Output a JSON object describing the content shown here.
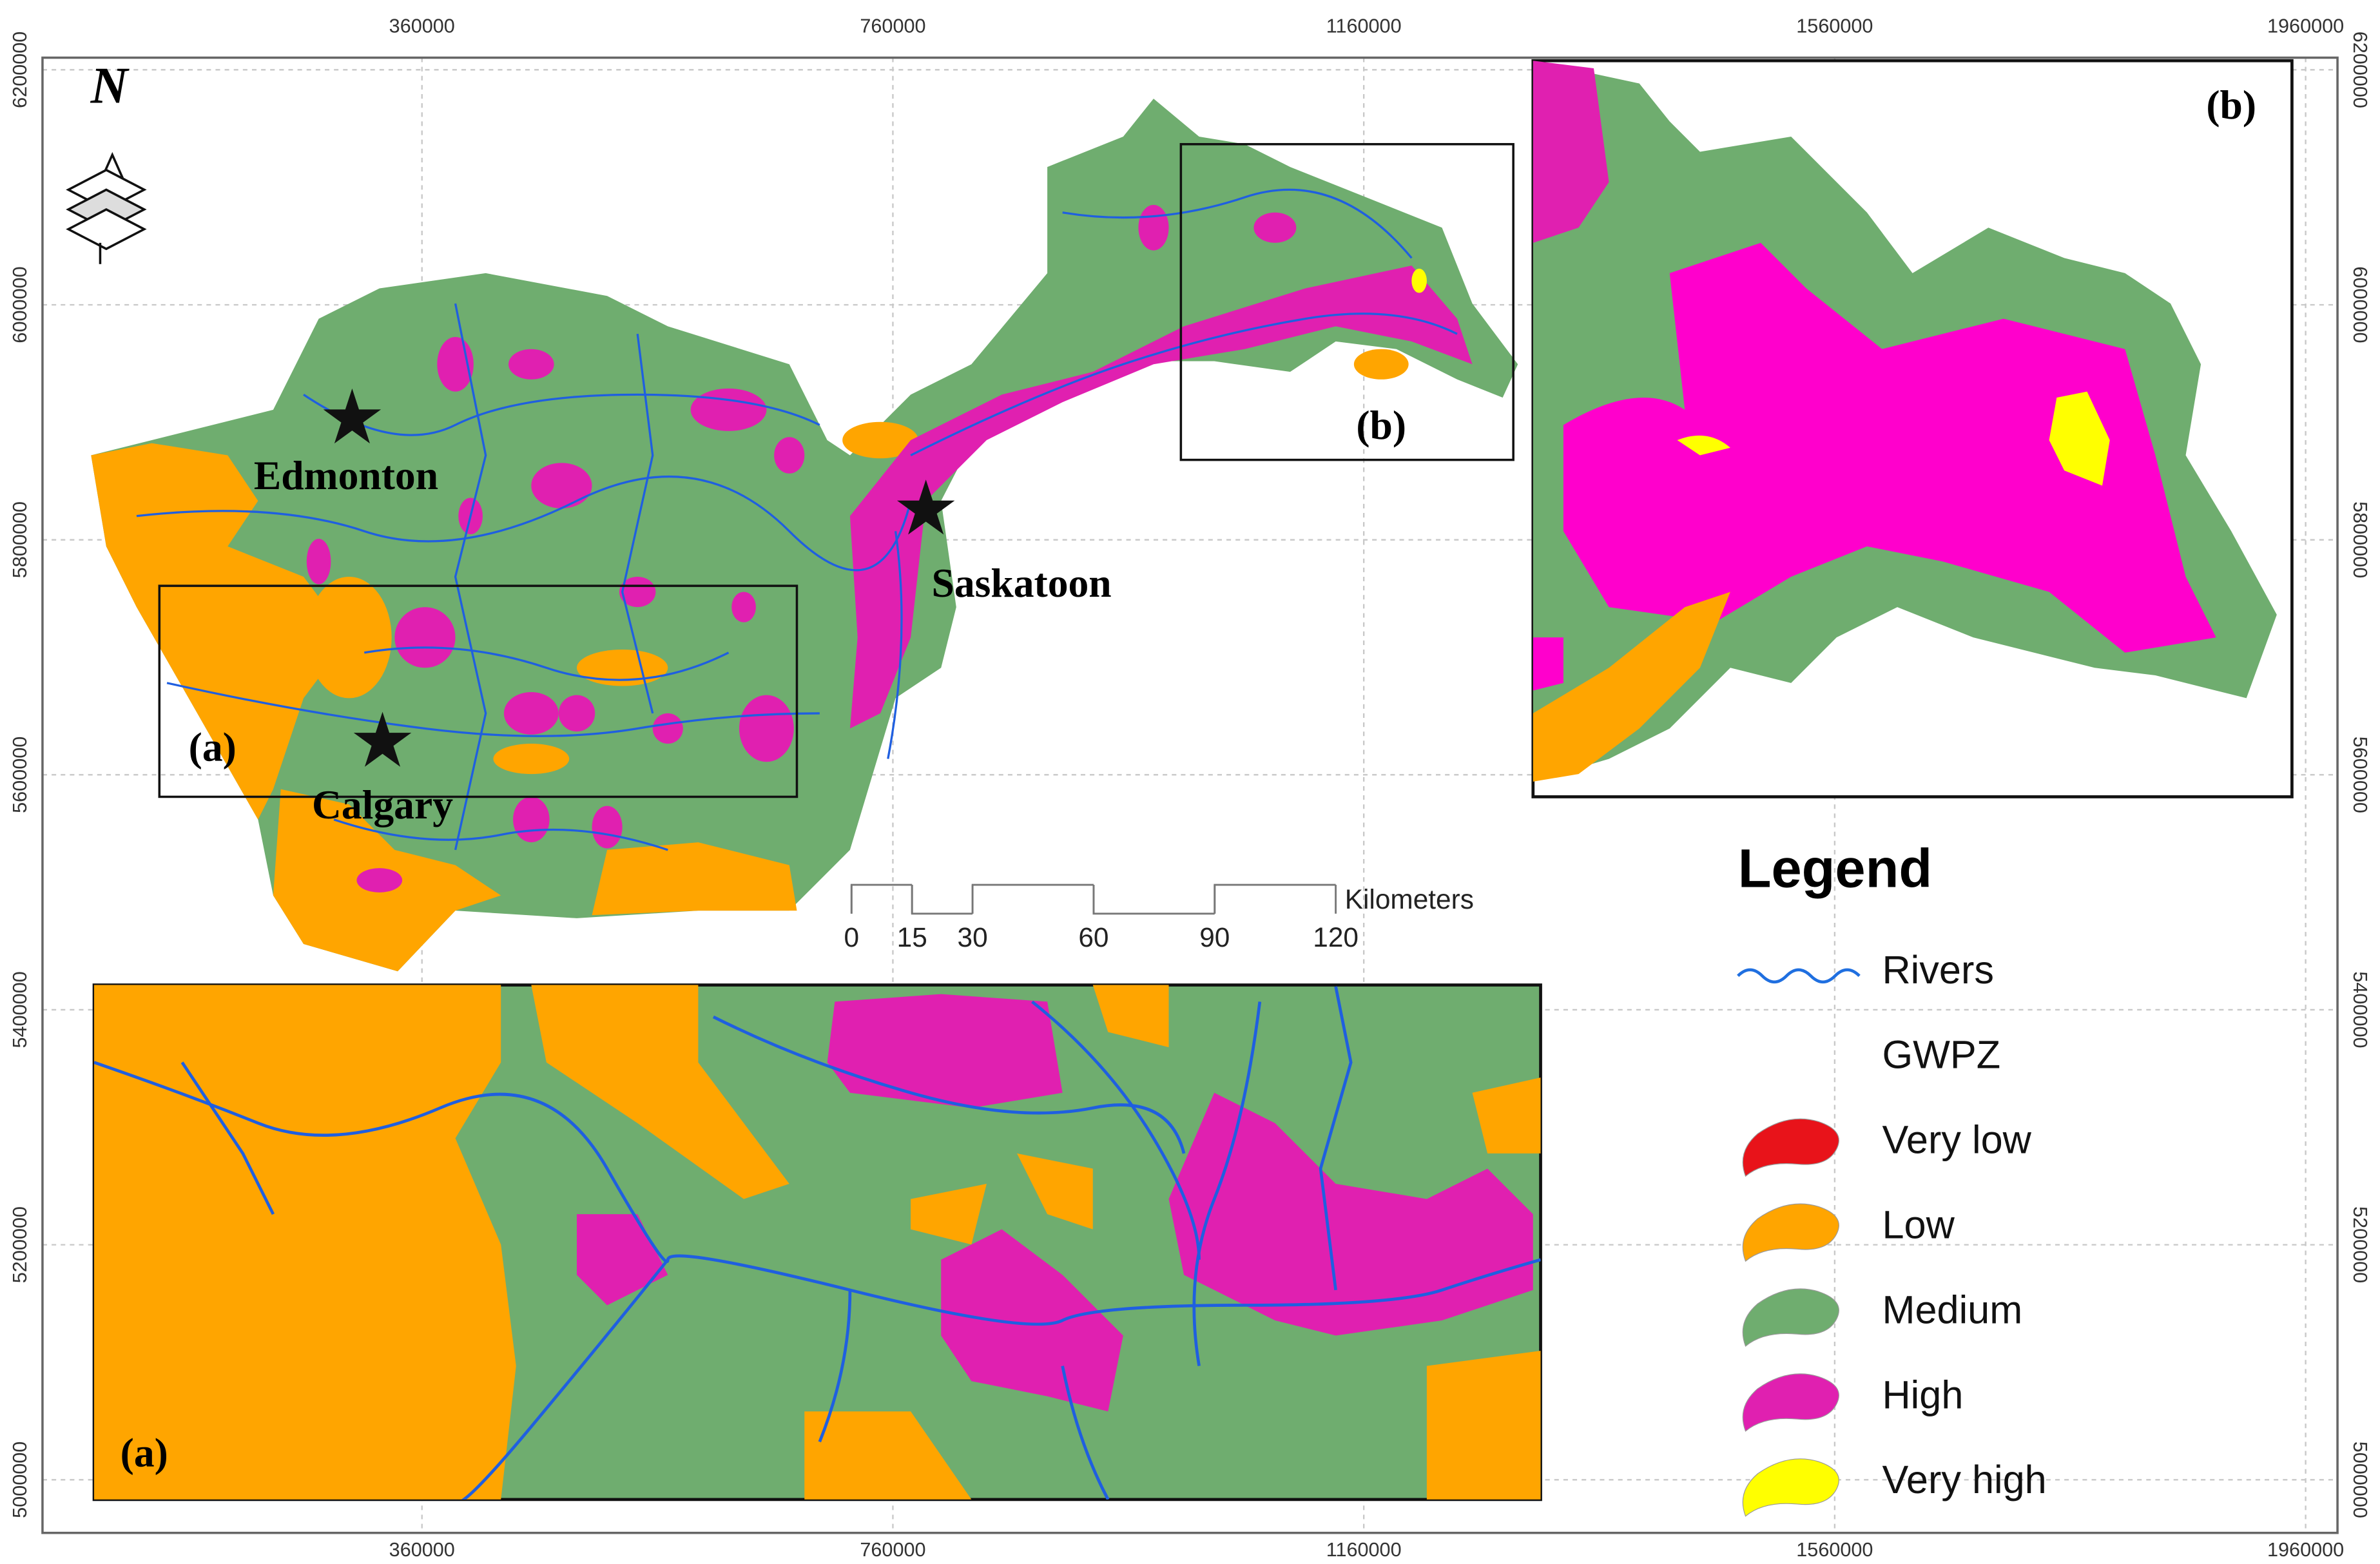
{
  "map": {
    "x_axis": {
      "ticks": [
        360000,
        760000,
        1160000,
        1560000,
        1960000
      ]
    },
    "y_axis": {
      "ticks": [
        6200000,
        6000000,
        5800000,
        5600000,
        5400000,
        5200000,
        5000000
      ]
    },
    "north_label": "N",
    "cities": [
      {
        "name": "Edmonton"
      },
      {
        "name": "Saskatoon"
      },
      {
        "name": "Calgary"
      }
    ],
    "insets": [
      {
        "label": "(a)"
      },
      {
        "label": "(b)"
      }
    ],
    "scale_bar": {
      "unit": "Kilometers",
      "ticks": [
        0,
        15,
        30,
        60,
        90,
        120
      ]
    }
  },
  "legend": {
    "title": "Legend",
    "items": [
      {
        "label": "Rivers",
        "color": "#1f6fe0"
      },
      {
        "label": "GWPZ"
      },
      {
        "label": "Very low",
        "color": "#e8131a"
      },
      {
        "label": "Low",
        "color": "#ffa500"
      },
      {
        "label": "Medium",
        "color": "#6fad6f"
      },
      {
        "label": "High",
        "color": "#e020b0"
      },
      {
        "label": "Very high",
        "color": "#ffff00"
      }
    ]
  }
}
